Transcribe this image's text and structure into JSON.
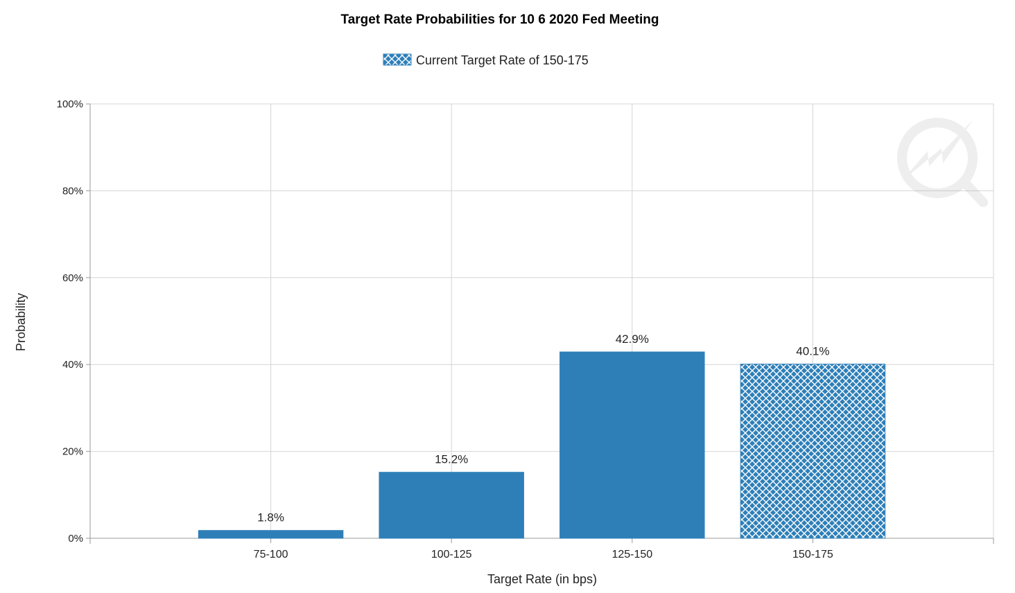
{
  "chart_data": {
    "type": "bar",
    "title": "Target Rate Probabilities for 10 6 2020 Fed Meeting",
    "legend": {
      "label": "Current Target Rate of 150-175",
      "position": "top-center"
    },
    "xlabel": "Target Rate (in bps)",
    "ylabel": "Probability",
    "categories": [
      "75-100",
      "100-125",
      "125-150",
      "150-175"
    ],
    "values": [
      1.8,
      15.2,
      42.9,
      40.1
    ],
    "data_labels": [
      "1.8%",
      "15.2%",
      "42.9%",
      "40.1%"
    ],
    "current_category": "150-175",
    "ylim": [
      0,
      100
    ],
    "yticks": [
      0,
      20,
      40,
      60,
      80,
      100
    ],
    "ytick_labels": [
      "0%",
      "20%",
      "40%",
      "60%",
      "80%",
      "100%"
    ],
    "grid": true,
    "bar_color": "#2e7fb8"
  }
}
